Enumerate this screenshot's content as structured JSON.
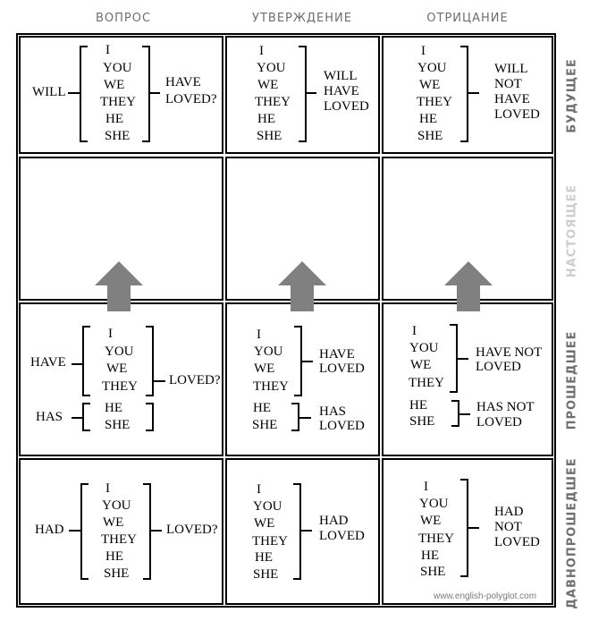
{
  "columns": {
    "question": "ВОПРОС",
    "affirmative": "УТВЕРЖДЕНИЕ",
    "negative": "ОТРИЦАНИЕ"
  },
  "rows": {
    "future": "БУДУЩЕЕ",
    "present": "НАСТОЯЩЕЕ",
    "past": "ПРОШЕДШЕЕ",
    "pluperfect": "ДАВНОПРОШЕДШЕЕ"
  },
  "pronouns": {
    "i": "I",
    "you": "YOU",
    "we": "WE",
    "they": "THEY",
    "he": "HE",
    "she": "SHE"
  },
  "future": {
    "question_aux": "WILL",
    "question_verb_1": "HAVE",
    "question_verb_2": "LOVED?",
    "affirm_1": "WILL",
    "affirm_2": "HAVE",
    "affirm_3": "LOVED",
    "neg_1": "WILL",
    "neg_2": "NOT",
    "neg_3": "HAVE",
    "neg_4": "LOVED"
  },
  "past": {
    "question_aux_have": "HAVE",
    "question_aux_has": "HAS",
    "question_verb": "LOVED?",
    "affirm_have_1": "HAVE",
    "affirm_have_2": "LOVED",
    "affirm_has_1": "HAS",
    "affirm_has_2": "LOVED",
    "neg_have_1": "HAVE NOT",
    "neg_have_2": "LOVED",
    "neg_has_1": "HAS NOT",
    "neg_has_2": "LOVED"
  },
  "pluperfect": {
    "question_aux": "HAD",
    "question_verb": "LOVED?",
    "affirm_1": "HAD",
    "affirm_2": "LOVED",
    "neg_1": "HAD",
    "neg_2": "NOT",
    "neg_3": "LOVED"
  },
  "watermark": "www.english-polyglot.com",
  "colors": {
    "arrow": "#808080",
    "header": "#6e6e6e",
    "present_label": "#cdcdcd"
  },
  "icons": {
    "arrow": "up-arrow-icon"
  }
}
